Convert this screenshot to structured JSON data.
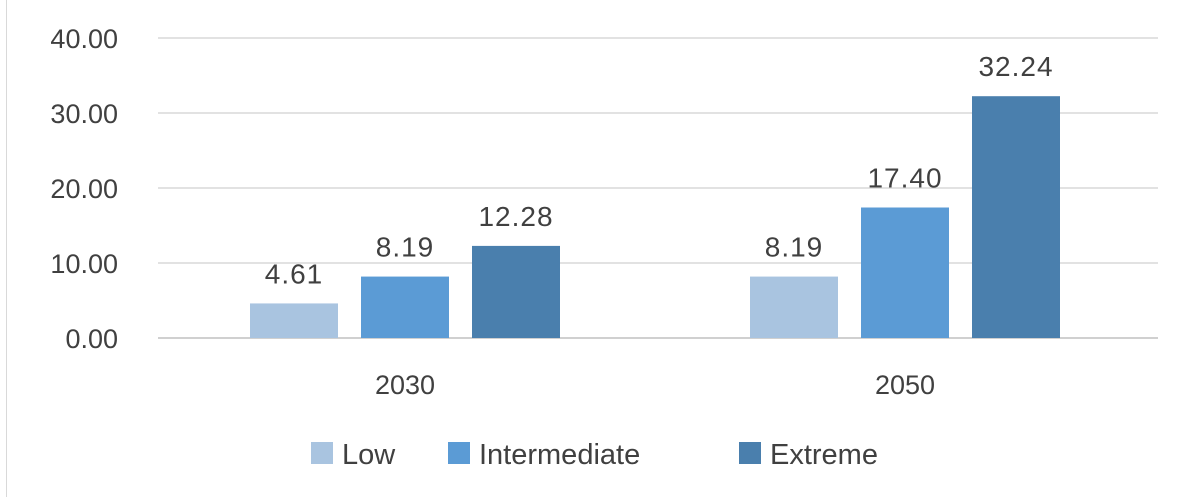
{
  "chart_data": {
    "type": "bar",
    "title": "",
    "xlabel": "",
    "ylabel": "",
    "categories": [
      "2030",
      "2050"
    ],
    "ylim": [
      0,
      40
    ],
    "yticks": [
      "0.00",
      "10.00",
      "20.00",
      "30.00",
      "40.00"
    ],
    "grid": true,
    "legend_position": "bottom",
    "series": [
      {
        "name": "Low",
        "color": "#a9c4e0",
        "values": [
          4.61,
          8.19
        ],
        "labels": [
          "4.61",
          "8.19"
        ]
      },
      {
        "name": "Intermediate",
        "color": "#5b9bd5",
        "values": [
          8.19,
          17.4
        ],
        "labels": [
          "8.19",
          "17.40"
        ]
      },
      {
        "name": "Extreme",
        "color": "#4a7fad",
        "values": [
          12.28,
          32.24
        ],
        "labels": [
          "12.28",
          "32.24"
        ]
      }
    ]
  }
}
